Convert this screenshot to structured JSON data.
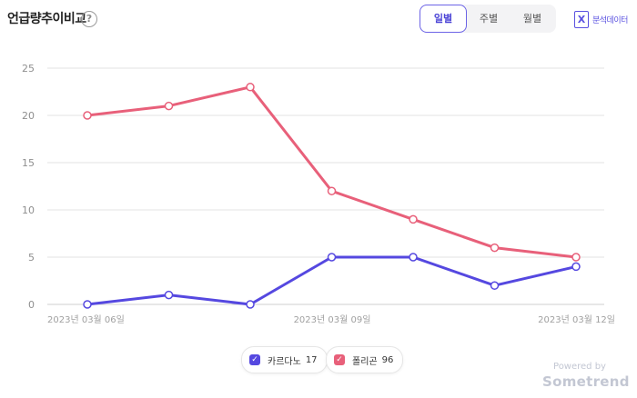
{
  "header": {
    "title": "언급량추이비교",
    "help_symbol": "?",
    "tabs": [
      {
        "label": "일별",
        "active": true
      },
      {
        "label": "주별",
        "active": false
      },
      {
        "label": "월별",
        "active": false
      }
    ],
    "export_icon_letter": "X",
    "export_label": "분석데이터"
  },
  "chart_data": {
    "type": "line",
    "x": [
      "2023년 03월 06일",
      "2023년 03월 07일",
      "2023년 03월 08일",
      "2023년 03월 09일",
      "2023년 03월 10일",
      "2023년 03월 11일",
      "2023년 03월 12일"
    ],
    "x_tick_labels": [
      "2023년 03월 06일",
      "2023년 03월 09일",
      "2023년 03월 12일"
    ],
    "ylim": [
      0,
      25
    ],
    "y_ticks": [
      0,
      5,
      10,
      15,
      20,
      25
    ],
    "grid": true,
    "series": [
      {
        "name": "카르다노",
        "values": [
          0,
          1,
          0,
          5,
          5,
          2,
          4
        ],
        "color": "#5548e0",
        "total": "17"
      },
      {
        "name": "폴리곤",
        "values": [
          20,
          21,
          23,
          12,
          9,
          6,
          5
        ],
        "color": "#e8607a",
        "total": "96"
      }
    ],
    "legend_position": "bottom-center"
  },
  "footer": {
    "powered_label": "Powered by",
    "brand": "Sometrend"
  }
}
